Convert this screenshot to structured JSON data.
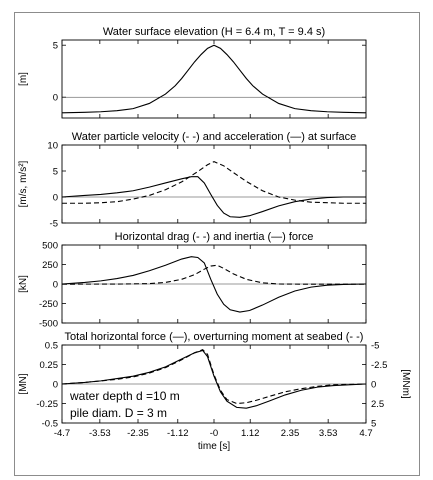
{
  "chart_data": {
    "type": "line",
    "x_ticks": [
      "-4.7",
      "-3.53",
      "-2.35",
      "-1.12",
      "-0",
      "1.12",
      "2.35",
      "3.53",
      "4.7"
    ],
    "xlabel": "time [s]",
    "xlim": [
      -4.7,
      4.7
    ],
    "panels": [
      {
        "title": "Water surface elevation (H = 6.4 m, T = 9.4 s)",
        "ylabel": "[m]",
        "ylim": [
          -2,
          5.5
        ],
        "y_ticks": [
          0,
          5
        ],
        "y_tick_labels": [
          "0",
          "5"
        ],
        "series": [
          {
            "style": "solid",
            "x": [
              -4.7,
              -4.0,
              -3.5,
              -3.0,
              -2.5,
              -2.0,
              -1.5,
              -1.2,
              -1.0,
              -0.8,
              -0.6,
              -0.4,
              -0.2,
              0.0,
              0.2,
              0.4,
              0.6,
              0.8,
              1.0,
              1.2,
              1.5,
              2.0,
              2.5,
              3.0,
              3.5,
              4.0,
              4.7
            ],
            "y": [
              -1.5,
              -1.45,
              -1.4,
              -1.3,
              -1.1,
              -0.6,
              0.3,
              1.1,
              1.8,
              2.6,
              3.4,
              4.1,
              4.7,
              5.0,
              4.7,
              4.1,
              3.4,
              2.6,
              1.8,
              1.1,
              0.3,
              -0.6,
              -1.1,
              -1.3,
              -1.4,
              -1.45,
              -1.5
            ]
          }
        ]
      },
      {
        "title": "Water particle velocity (- -) and acceleration (—) at surface",
        "ylabel": "[m/s, m/s²]",
        "ylim": [
          -5,
          10
        ],
        "y_ticks": [
          -5,
          0,
          5,
          10
        ],
        "y_tick_labels": [
          "-5",
          "0",
          "5",
          "10"
        ],
        "series": [
          {
            "name": "velocity",
            "style": "dashed",
            "x": [
              -4.7,
              -4.0,
              -3.5,
              -3.0,
              -2.5,
              -2.0,
              -1.5,
              -1.0,
              -0.5,
              -0.2,
              0.0,
              0.3,
              0.6,
              1.0,
              1.5,
              2.0,
              2.5,
              3.0,
              3.5,
              4.0,
              4.7
            ],
            "y": [
              -1.2,
              -1.2,
              -1.1,
              -0.9,
              -0.4,
              0.3,
              1.4,
              2.9,
              4.9,
              6.2,
              6.8,
              6.0,
              4.7,
              3.0,
              1.2,
              0.0,
              -0.6,
              -1.0,
              -1.1,
              -1.2,
              -1.2
            ]
          },
          {
            "name": "acceleration",
            "style": "solid",
            "x": [
              -4.7,
              -4.0,
              -3.5,
              -3.0,
              -2.5,
              -2.0,
              -1.5,
              -1.0,
              -0.7,
              -0.5,
              -0.3,
              -0.1,
              0.1,
              0.3,
              0.5,
              0.8,
              1.1,
              1.5,
              2.0,
              2.5,
              3.0,
              3.5,
              4.0,
              4.7
            ],
            "y": [
              0.0,
              0.3,
              0.5,
              0.8,
              1.2,
              1.9,
              2.7,
              3.5,
              3.9,
              3.9,
              2.7,
              0.5,
              -1.6,
              -3.1,
              -3.8,
              -3.9,
              -3.6,
              -2.8,
              -1.7,
              -0.9,
              -0.4,
              -0.1,
              0.0,
              0.0
            ]
          }
        ]
      },
      {
        "title": "Horizontal drag (- -) and inertia (—) force",
        "ylabel": "[kN]",
        "ylim": [
          -500,
          500
        ],
        "y_ticks": [
          -500,
          -250,
          0,
          250,
          500
        ],
        "y_tick_labels": [
          "-500",
          "-250",
          "0",
          "250",
          "500"
        ],
        "series": [
          {
            "name": "drag",
            "style": "dashed",
            "x": [
              -4.7,
              -3.0,
              -2.0,
              -1.5,
              -1.0,
              -0.6,
              -0.3,
              -0.1,
              0.1,
              0.3,
              0.6,
              1.0,
              1.5,
              2.0,
              3.0,
              4.7
            ],
            "y": [
              -2,
              -1,
              5,
              20,
              60,
              120,
              190,
              230,
              240,
              200,
              130,
              60,
              15,
              0,
              -3,
              -2
            ]
          },
          {
            "name": "inertia",
            "style": "solid",
            "x": [
              -4.7,
              -4.0,
              -3.5,
              -3.0,
              -2.5,
              -2.0,
              -1.5,
              -1.0,
              -0.7,
              -0.5,
              -0.3,
              -0.1,
              0.1,
              0.3,
              0.5,
              0.8,
              1.1,
              1.5,
              2.0,
              2.5,
              3.0,
              3.5,
              4.0,
              4.7
            ],
            "y": [
              0,
              20,
              40,
              70,
              110,
              170,
              240,
              320,
              350,
              340,
              270,
              60,
              -130,
              -260,
              -330,
              -360,
              -340,
              -270,
              -170,
              -90,
              -40,
              -15,
              -5,
              0
            ]
          }
        ]
      },
      {
        "title": "Total horizontal force (—), overturning moment at seabed (- -)",
        "ylabel": "[MN]",
        "ylabel_right": "[MNm]",
        "ylim": [
          -0.5,
          0.5
        ],
        "y_ticks": [
          -0.5,
          -0.25,
          0,
          0.25,
          0.5
        ],
        "y_tick_labels": [
          "-0.5",
          "-0.25",
          "0",
          "0.25",
          "0.5"
        ],
        "y_right_ticks": [
          "5",
          "2.5",
          "0",
          "-2.5",
          "-5"
        ],
        "annotations": [
          "water depth d =10 m",
          "pile diam.  D = 3 m"
        ],
        "series": [
          {
            "name": "total horizontal force",
            "style": "solid",
            "x": [
              -4.7,
              -4.0,
              -3.5,
              -3.0,
              -2.5,
              -2.0,
              -1.5,
              -1.0,
              -0.6,
              -0.35,
              -0.2,
              0.0,
              0.2,
              0.4,
              0.7,
              1.0,
              1.3,
              1.7,
              2.2,
              2.7,
              3.2,
              3.7,
              4.7
            ],
            "y": [
              0.0,
              0.02,
              0.04,
              0.07,
              0.1,
              0.15,
              0.22,
              0.32,
              0.4,
              0.43,
              0.35,
              0.1,
              -0.1,
              -0.22,
              -0.3,
              -0.31,
              -0.28,
              -0.22,
              -0.14,
              -0.08,
              -0.04,
              -0.02,
              0.0
            ]
          },
          {
            "name": "overturning moment",
            "style": "dashed",
            "x": [
              -4.7,
              -4.0,
              -3.5,
              -3.0,
              -2.5,
              -2.0,
              -1.5,
              -1.0,
              -0.6,
              -0.35,
              -0.2,
              0.0,
              0.2,
              0.4,
              0.7,
              1.0,
              1.3,
              1.7,
              2.2,
              2.7,
              3.2,
              3.7,
              4.7
            ],
            "y": [
              0.0,
              0.02,
              0.04,
              0.06,
              0.09,
              0.14,
              0.21,
              0.31,
              0.4,
              0.44,
              0.38,
              0.12,
              -0.08,
              -0.2,
              -0.25,
              -0.24,
              -0.21,
              -0.16,
              -0.1,
              -0.06,
              -0.03,
              -0.01,
              0.0
            ]
          }
        ]
      }
    ]
  }
}
